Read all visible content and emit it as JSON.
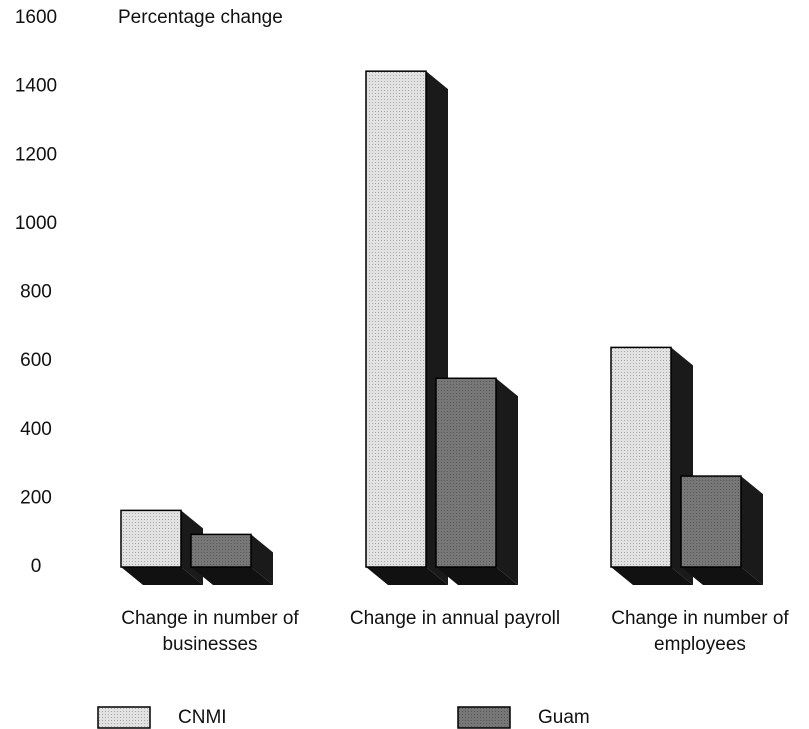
{
  "chart_data": {
    "type": "bar3d",
    "y_axis_label": "Percentage change",
    "categories": [
      "Change in number of businesses",
      "Change in annual payroll",
      "Change in number of employees"
    ],
    "series": [
      {
        "name": "CNMI",
        "color": "#e2e2e2",
        "values": [
          165,
          1445,
          640
        ]
      },
      {
        "name": "Guam",
        "color": "#777777",
        "values": [
          95,
          550,
          265
        ]
      }
    ],
    "ylim": [
      0,
      1600
    ],
    "yticks": [
      0,
      200,
      400,
      600,
      800,
      1000,
      1200,
      1400,
      1600
    ],
    "grid": false
  }
}
